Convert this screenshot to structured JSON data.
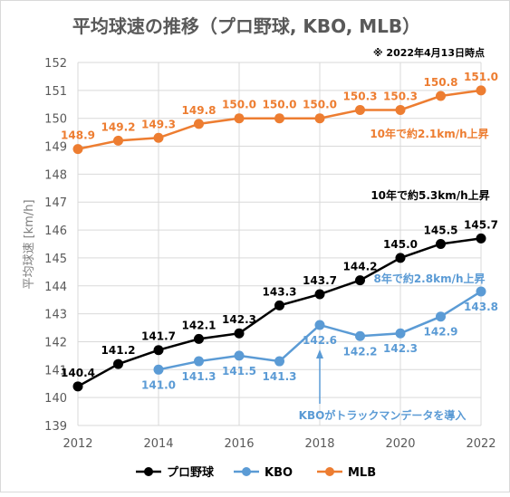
{
  "chart_data": {
    "type": "line",
    "title": "平均球速の推移（プロ野球, KBO, MLB）",
    "subtitle": "※ 2022年4月13日時点",
    "xlabel": "",
    "ylabel": "平均球速 [km/h]",
    "x": [
      2012,
      2013,
      2014,
      2015,
      2016,
      2017,
      2018,
      2019,
      2020,
      2021,
      2022
    ],
    "xticks": [
      "2012",
      "2014",
      "2016",
      "2018",
      "2020",
      "2022"
    ],
    "yticks": [
      "139",
      "140",
      "141",
      "142",
      "143",
      "144",
      "145",
      "146",
      "147",
      "148",
      "149",
      "150",
      "151",
      "152"
    ],
    "ylim": [
      139,
      152
    ],
    "xlim": [
      2012,
      2022
    ],
    "grid": "both",
    "legend_position": "bottom",
    "series": [
      {
        "name": "プロ野球",
        "color": "#000000",
        "x": [
          2012,
          2013,
          2014,
          2015,
          2016,
          2017,
          2018,
          2019,
          2020,
          2021,
          2022
        ],
        "values": [
          140.4,
          141.2,
          141.7,
          142.1,
          142.3,
          143.3,
          143.7,
          144.2,
          145.0,
          145.5,
          145.7
        ],
        "labels": [
          "140.4",
          "141.2",
          "141.7",
          "142.1",
          "142.3",
          "143.3",
          "143.7",
          "144.2",
          "145.0",
          "145.5",
          "145.7"
        ],
        "label_position": "above"
      },
      {
        "name": "KBO",
        "color": "#5B9BD5",
        "x": [
          2014,
          2015,
          2016,
          2017,
          2018,
          2019,
          2020,
          2021,
          2022
        ],
        "values": [
          141.0,
          141.3,
          141.5,
          141.3,
          142.6,
          142.2,
          142.3,
          142.9,
          143.8
        ],
        "labels": [
          "141.0",
          "141.3",
          "141.5",
          "141.3",
          "142.6",
          "142.2",
          "142.3",
          "142.9",
          "143.8"
        ],
        "label_position": "below"
      },
      {
        "name": "MLB",
        "color": "#ED7D31",
        "x": [
          2012,
          2013,
          2014,
          2015,
          2016,
          2017,
          2018,
          2019,
          2020,
          2021,
          2022
        ],
        "values": [
          148.9,
          149.2,
          149.3,
          149.8,
          150.0,
          150.0,
          150.0,
          150.3,
          150.3,
          150.8,
          151.0
        ],
        "labels": [
          "148.9",
          "149.2",
          "149.3",
          "149.8",
          "150.0",
          "150.0",
          "150.0",
          "150.3",
          "150.3",
          "150.8",
          "151.0"
        ],
        "label_position": "above"
      }
    ],
    "annotations": [
      {
        "text": "10年で約2.1km/h上昇",
        "color": "#ED7D31"
      },
      {
        "text": "10年で約5.3km/h上昇",
        "color": "#000000"
      },
      {
        "text": "8年で約2.8km/h上昇",
        "color": "#5B9BD5"
      },
      {
        "text": "KBOがトラックマンデータを導入",
        "color": "#5B9BD5",
        "arrow_to_x": 2018
      }
    ]
  }
}
